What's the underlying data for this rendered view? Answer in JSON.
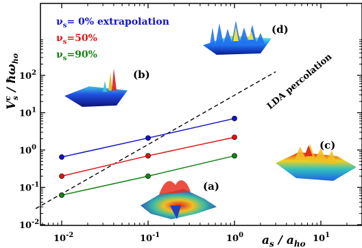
{
  "chart_data": {
    "type": "line",
    "xscale": "log",
    "yscale": "log",
    "xlim": [
      0.005,
      3
    ],
    "ylim": [
      0.01,
      200
    ],
    "xticks": [
      {
        "base": "10",
        "exp": "-2"
      },
      {
        "base": "10",
        "exp": "-1"
      },
      {
        "base": "10",
        "exp": "0"
      },
      {
        "base": "10",
        "exp": "1"
      }
    ],
    "yticks": [
      {
        "base": "10",
        "exp": "-2"
      },
      {
        "base": "10",
        "exp": "-1"
      },
      {
        "base": "10",
        "exp": "0"
      },
      {
        "base": "10",
        "exp": "1"
      },
      {
        "base": "10",
        "exp": "2"
      }
    ],
    "xlabel": {
      "main": "a",
      "sub": "s",
      "sep": " / a",
      "sub2": "ho"
    },
    "ylabel": {
      "main": "V",
      "sub": "s",
      "sup": "c",
      "sep": " / ħω",
      "sub2": "ho"
    },
    "series": [
      {
        "name_main": "ν",
        "name_sub": "s",
        "name_rest": "= 0% extrapolation",
        "color": "#1414c8",
        "x": [
          0.01,
          0.1,
          1
        ],
        "y": [
          0.65,
          2.1,
          7.0
        ]
      },
      {
        "name_main": "ν",
        "name_sub": "s",
        "name_rest": "=50%",
        "color": "#e01414",
        "x": [
          0.01,
          0.1,
          1
        ],
        "y": [
          0.2,
          0.7,
          2.2
        ]
      },
      {
        "name_main": "ν",
        "name_sub": "s",
        "name_rest": "=90%",
        "color": "#148214",
        "x": [
          0.01,
          0.1,
          1
        ],
        "y": [
          0.062,
          0.2,
          0.7
        ]
      }
    ],
    "reference_line": {
      "label": "LDA percolation",
      "style": "dashed",
      "color": "#000000",
      "x": [
        0.005,
        3
      ],
      "y": [
        0.027,
        125
      ]
    },
    "insets": [
      {
        "label": "(a)"
      },
      {
        "label": "(b)"
      },
      {
        "label": "(c)"
      },
      {
        "label": "(d)"
      }
    ]
  }
}
